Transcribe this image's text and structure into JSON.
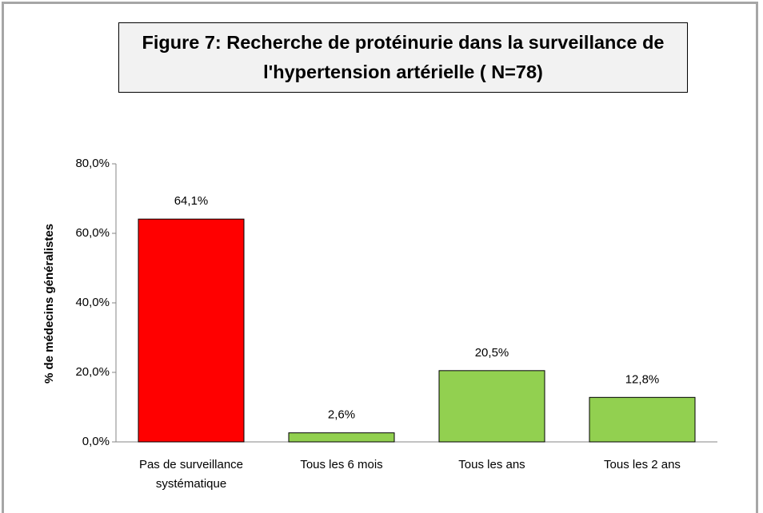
{
  "chart_data": {
    "type": "bar",
    "title": "Figure 7: Recherche de protéinurie dans la surveillance de l'hypertension artérielle ( N=78)",
    "y_label": "% de médecins généralistes",
    "categories": [
      "Pas de surveillance systématique",
      "Tous les 6 mois",
      "Tous les ans",
      "Tous les 2 ans"
    ],
    "values": [
      64.1,
      2.6,
      20.5,
      12.8
    ],
    "value_labels": [
      "64,1%",
      "2,6%",
      "20,5%",
      "12,8%"
    ],
    "colors": [
      "#ff0000",
      "#92d050",
      "#92d050",
      "#92d050"
    ],
    "ylim": [
      0,
      80
    ],
    "yticks": [
      {
        "value": 0,
        "label": "0,0%"
      },
      {
        "value": 20,
        "label": "20,0%"
      },
      {
        "value": 40,
        "label": "40,0%"
      },
      {
        "value": 60,
        "label": "60,0%"
      },
      {
        "value": 80,
        "label": "80,0%"
      }
    ]
  }
}
